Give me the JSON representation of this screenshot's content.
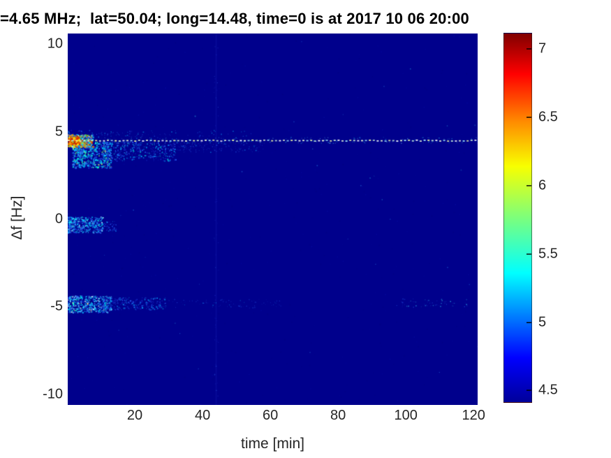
{
  "title": "=4.65 MHz;  lat=50.04; long=14.48, time=0 is at 2017 10 06 20:00",
  "colors": {
    "plot_background": "#00008C",
    "page_background": "#FFFFFF",
    "title_color": "#000000",
    "tick_color": "#262626"
  },
  "chart_data": {
    "type": "heatmap",
    "subtype": "doppler-spectrogram",
    "title": "=4.65 MHz;  lat=50.04; long=14.48, time=0 is at 2017 10 06 20:00",
    "xlabel": "time [min]",
    "ylabel": "Δf [Hz]",
    "xlim": [
      0.2,
      121.2
    ],
    "ylim": [
      -10.6,
      10.6
    ],
    "xticks": [
      20,
      40,
      60,
      80,
      100,
      120
    ],
    "yticks": [
      10,
      5,
      0,
      -5,
      -10
    ],
    "grid": false,
    "colormap": "jet",
    "background_color": "#00008C",
    "colorbar": {
      "ticks": [
        7,
        6.5,
        6,
        5.5,
        5,
        4.5
      ],
      "range": [
        4.41,
        7.12
      ],
      "gradient": [
        {
          "pos": 0,
          "color": "#00009A"
        },
        {
          "pos": 0.12,
          "color": "#0000FF"
        },
        {
          "pos": 0.35,
          "color": "#00FFFF"
        },
        {
          "pos": 0.5,
          "color": "#7CFF7C"
        },
        {
          "pos": 0.64,
          "color": "#F8FF00"
        },
        {
          "pos": 0.76,
          "color": "#FF8C00"
        },
        {
          "pos": 0.89,
          "color": "#FF0000"
        },
        {
          "pos": 1,
          "color": "#800000"
        }
      ]
    },
    "seed": 20171006,
    "features": [
      {
        "kind": "speckle",
        "label": "background-noise-dark",
        "t0": 0.2,
        "t1": 121.2,
        "f0": -10.6,
        "f1": 10.6,
        "count": 500,
        "size": [
          1,
          2
        ],
        "alpha": [
          0.12,
          0.3
        ],
        "colors": [
          [
            "#000078",
            1
          ],
          [
            "#0a14b4",
            1
          ]
        ]
      },
      {
        "kind": "speckle",
        "label": "sparse-faint-dots",
        "t0": 0.2,
        "t1": 121.2,
        "f0": -10.4,
        "f1": 10.4,
        "count": 35,
        "size": [
          1,
          1.8
        ],
        "alpha": [
          0.2,
          0.45
        ],
        "colors": [
          [
            "#2e9bff",
            2
          ],
          [
            "#35e0ff",
            1
          ]
        ]
      },
      {
        "kind": "vline",
        "label": "faint-vertical-stripe",
        "t": 43.8,
        "width": 2,
        "alpha": 0.18,
        "color": "#2233cc"
      },
      {
        "kind": "speckle",
        "label": "vertical-stripe-dots",
        "t0": 43.2,
        "t1": 44.6,
        "f0": -10.3,
        "f1": 10.3,
        "count": 55,
        "size": [
          1,
          1.6
        ],
        "alpha": [
          0.15,
          0.4
        ],
        "colors": [
          [
            "#2233cc",
            3
          ],
          [
            "#3a7bff",
            1
          ]
        ]
      },
      {
        "kind": "speckle",
        "label": "above-line-haze",
        "t0": 0.2,
        "t1": 55,
        "f0": 4.6,
        "f1": 5.1,
        "count": 140,
        "skew": 2,
        "size": [
          1,
          1.8
        ],
        "alpha": [
          0.2,
          0.6
        ],
        "colors": [
          [
            "#1830bb",
            4
          ],
          [
            "#00b4ff",
            2
          ],
          [
            "#2b6bff",
            2
          ]
        ]
      },
      {
        "kind": "speckle",
        "label": "descending-tail-early",
        "t0": 1.5,
        "t1": 13,
        "f0": 2.95,
        "f1": 4.45,
        "count": 650,
        "skew": 1.2,
        "size": [
          1,
          2.4
        ],
        "alpha": [
          0.4,
          1
        ],
        "colors": [
          [
            "#00c8ff",
            4
          ],
          [
            "#2f8cff",
            3
          ],
          [
            "#1f3fe0",
            4
          ],
          [
            "#00ffd9",
            2
          ],
          [
            "#59e86b",
            1
          ],
          [
            "#eaff66",
            0.5
          ]
        ]
      },
      {
        "kind": "speckle",
        "label": "descending-tail-mid",
        "t0": 11,
        "t1": 32,
        "f0": 3.35,
        "f1": 4.45,
        "count": 400,
        "skew": 1.3,
        "size": [
          1,
          2
        ],
        "alpha": [
          0.3,
          0.9
        ],
        "colors": [
          [
            "#00b4ff",
            3
          ],
          [
            "#2b6bff",
            3
          ],
          [
            "#1830cc",
            5
          ],
          [
            "#00e6d2",
            1
          ]
        ]
      },
      {
        "kind": "speckle",
        "label": "descending-tail-late",
        "t0": 30,
        "t1": 58,
        "f0": 3.85,
        "f1": 4.5,
        "count": 180,
        "skew": 1.2,
        "size": [
          1,
          1.8
        ],
        "alpha": [
          0.2,
          0.6
        ],
        "colors": [
          [
            "#1830bb",
            5
          ],
          [
            "#2b6bff",
            2
          ],
          [
            "#00b4ff",
            1
          ]
        ]
      },
      {
        "kind": "speckle",
        "label": "carrier-start-blob",
        "t0": 0.2,
        "t1": 7.5,
        "f0": 4.15,
        "f1": 4.85,
        "count": 520,
        "skew": 1.3,
        "size": [
          1,
          2.6
        ],
        "alpha": [
          0.5,
          1
        ],
        "colors": [
          [
            "#d42800",
            3
          ],
          [
            "#ff8800",
            3
          ],
          [
            "#ffee00",
            4
          ],
          [
            "#55cc44",
            3
          ],
          [
            "#00ccff",
            4
          ],
          [
            "#2b6bff",
            3
          ],
          [
            "#ffffff",
            1
          ]
        ]
      },
      {
        "kind": "speckle",
        "label": "carrier-start-core",
        "t0": 0.2,
        "t1": 3.6,
        "f0": 4.3,
        "f1": 4.72,
        "count": 240,
        "skew": 1,
        "size": [
          1.2,
          3
        ],
        "alpha": [
          0.6,
          1
        ],
        "colors": [
          [
            "#cc1100",
            5
          ],
          [
            "#ff7700",
            4
          ],
          [
            "#ffe800",
            3
          ],
          [
            "#3db535",
            1
          ]
        ]
      },
      {
        "kind": "speckle",
        "label": "zero-hz-patch",
        "t0": 0.2,
        "t1": 10.5,
        "f0": -0.75,
        "f1": 0.15,
        "count": 430,
        "skew": 1.4,
        "size": [
          1,
          2.2
        ],
        "alpha": [
          0.35,
          1
        ],
        "colors": [
          [
            "#00ccff",
            4
          ],
          [
            "#36a0ff",
            3
          ],
          [
            "#1f3fe0",
            4
          ],
          [
            "#aef3ff",
            1
          ],
          [
            "#00ffd9",
            1
          ]
        ]
      },
      {
        "kind": "speckle",
        "label": "zero-hz-tip",
        "t0": 8,
        "t1": 14.5,
        "f0": -0.65,
        "f1": -0.1,
        "count": 90,
        "skew": 1,
        "size": [
          1,
          1.8
        ],
        "alpha": [
          0.25,
          0.7
        ],
        "colors": [
          [
            "#1f3fe0",
            4
          ],
          [
            "#2b6bff",
            2
          ],
          [
            "#00b4ff",
            1
          ]
        ]
      },
      {
        "kind": "speckle",
        "label": "minus5-band-start",
        "t0": 0.2,
        "t1": 13,
        "f0": -5.3,
        "f1": -4.35,
        "count": 540,
        "skew": 1.2,
        "size": [
          1,
          2.2
        ],
        "alpha": [
          0.35,
          1
        ],
        "colors": [
          [
            "#00ccff",
            4
          ],
          [
            "#49b2ff",
            3
          ],
          [
            "#1f3fe0",
            4
          ],
          [
            "#c8f6ff",
            1
          ],
          [
            "#00ffd9",
            1
          ],
          [
            "#ffe87a",
            0.3
          ]
        ]
      },
      {
        "kind": "speckle",
        "label": "minus5-band-mid",
        "t0": 11,
        "t1": 29,
        "f0": -5.15,
        "f1": -4.45,
        "count": 270,
        "skew": 1.3,
        "size": [
          1,
          2
        ],
        "alpha": [
          0.25,
          0.8
        ],
        "colors": [
          [
            "#00b4ff",
            2
          ],
          [
            "#2b6bff",
            3
          ],
          [
            "#1830cc",
            5
          ]
        ]
      },
      {
        "kind": "speckle",
        "label": "minus5-sparse-mid",
        "t0": 29,
        "t1": 63,
        "f0": -5.05,
        "f1": -4.55,
        "count": 80,
        "skew": 1.1,
        "size": [
          1,
          1.7
        ],
        "alpha": [
          0.15,
          0.5
        ],
        "colors": [
          [
            "#1830bb",
            4
          ],
          [
            "#2b6bff",
            2
          ],
          [
            "#00b4ff",
            1
          ]
        ]
      },
      {
        "kind": "speckle",
        "label": "minus5-sparse-right",
        "t0": 97,
        "t1": 119,
        "f0": -5.0,
        "f1": -4.5,
        "count": 60,
        "skew": 1,
        "size": [
          1,
          1.7
        ],
        "alpha": [
          0.15,
          0.55
        ],
        "colors": [
          [
            "#1830bb",
            3
          ],
          [
            "#2b6bff",
            2
          ],
          [
            "#36d6ff",
            2
          ]
        ]
      },
      {
        "kind": "speckle",
        "label": "carrier-line-glow",
        "t0": 0.2,
        "t1": 121.2,
        "f0": 4.35,
        "f1": 4.7,
        "count": 170,
        "skew": 1,
        "size": [
          1,
          1.6
        ],
        "alpha": [
          0.15,
          0.45
        ],
        "colors": [
          [
            "#2bd4ff",
            2
          ],
          [
            "#7fe8ff",
            1
          ]
        ]
      },
      {
        "kind": "dashline",
        "label": "carrier-dashed-line",
        "f": 4.52,
        "t0": 0.2,
        "t1": 121.2,
        "dash": 3,
        "gap": 2.6,
        "thickness": 1.8,
        "jitter": 0.7,
        "colors": [
          "#eeffd8",
          "#9ce9ff",
          "#f4ffa8",
          "#c9f2da",
          "#ffffff"
        ]
      }
    ]
  }
}
